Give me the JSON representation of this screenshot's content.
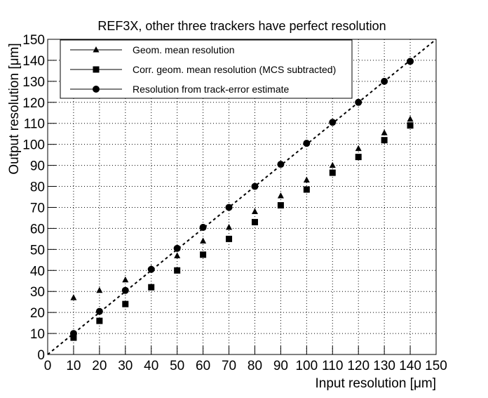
{
  "chart_data": {
    "type": "scatter",
    "title": "REF3X, other three trackers have perfect resolution",
    "x_label": "Input resolution [μm]",
    "y_label": "Output resolution [μm]",
    "x": [
      10,
      20,
      30,
      40,
      50,
      60,
      70,
      80,
      90,
      100,
      110,
      120,
      130,
      140
    ],
    "series": [
      {
        "name": "Geom. mean resolution",
        "color": "#000000",
        "marker": "triangle",
        "values": [
          27,
          30.5,
          35.5,
          41,
          47,
          54,
          60.5,
          68,
          75.5,
          83,
          90,
          98,
          105.5,
          112
        ]
      },
      {
        "name": "Corr. geom. mean resolution (MCS subtracted)",
        "color": "#000000",
        "marker": "square",
        "values": [
          8,
          16,
          24,
          32,
          40,
          47.5,
          55,
          63,
          71,
          78.5,
          86.5,
          94,
          102,
          109
        ]
      },
      {
        "name": "Resolution from track-error estimate",
        "color": "#000000",
        "marker": "circle",
        "values": [
          10,
          20.5,
          30.5,
          40.5,
          50.5,
          60.5,
          70,
          80,
          90.5,
          100.5,
          110.5,
          120,
          130,
          139.5
        ]
      }
    ],
    "xlim": [
      0,
      150
    ],
    "ylim": [
      0,
      150
    ],
    "xticks": [
      0,
      10,
      20,
      30,
      40,
      50,
      60,
      70,
      80,
      90,
      100,
      110,
      120,
      130,
      140,
      150
    ],
    "yticks": [
      0,
      10,
      20,
      30,
      40,
      50,
      60,
      70,
      80,
      90,
      100,
      110,
      120,
      130,
      140,
      150
    ],
    "grid": true,
    "diagonal": true,
    "legend": "top-left"
  }
}
